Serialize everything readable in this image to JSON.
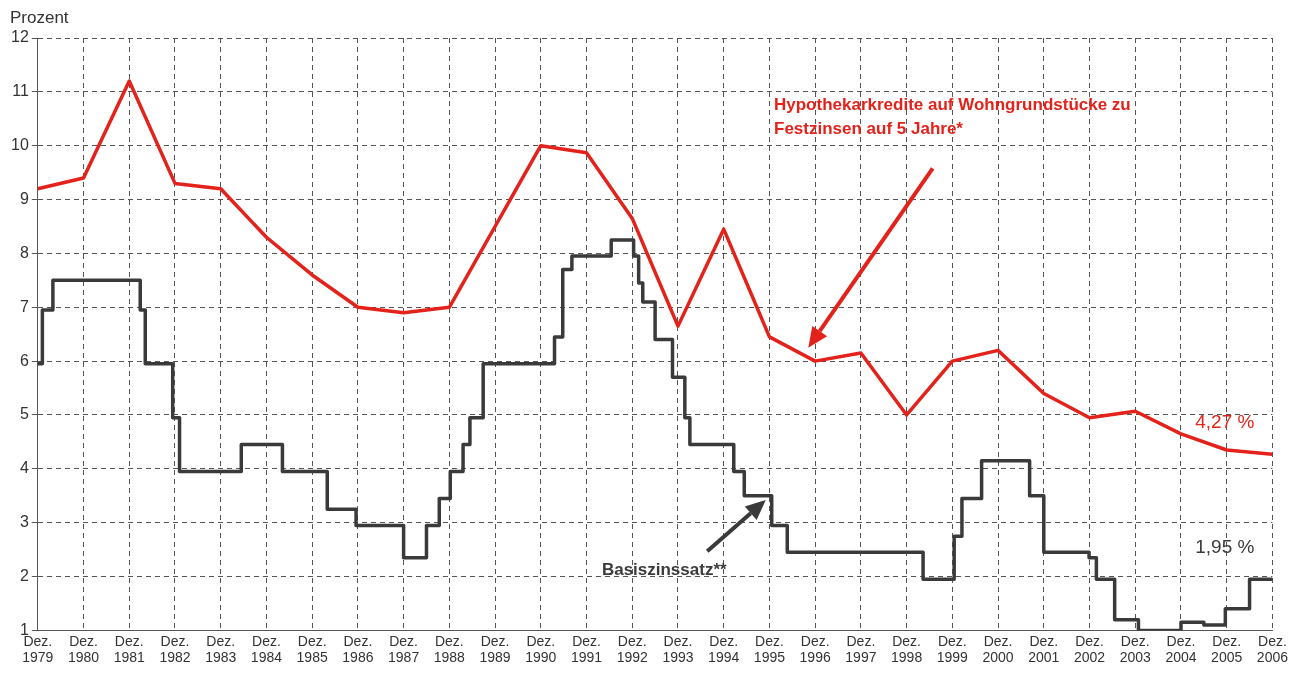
{
  "chart_data": {
    "type": "line",
    "ylabel": "Prozent",
    "x": [
      1979,
      1980,
      1981,
      1982,
      1983,
      1984,
      1985,
      1986,
      1987,
      1988,
      1989,
      1990,
      1991,
      1992,
      1993,
      1994,
      1995,
      1996,
      1997,
      1998,
      1999,
      2000,
      2001,
      2002,
      2003,
      2004,
      2005,
      2006
    ],
    "series": [
      {
        "name": "Hypothekarkredite auf Wohngrundstücke zu Festzinsen auf 5 Jahre*",
        "color": "#e3231b",
        "values": [
          9.2,
          9.4,
          11.2,
          9.3,
          9.2,
          8.3,
          7.6,
          7.0,
          6.9,
          7.0,
          8.5,
          10.0,
          9.87,
          8.65,
          6.65,
          8.45,
          6.45,
          6.0,
          6.15,
          5.0,
          6.0,
          6.2,
          5.4,
          4.95,
          5.07,
          4.65,
          4.35,
          4.27
        ]
      },
      {
        "name": "Basiszinssatz**",
        "color": "#3a3a3a",
        "type": "step",
        "x": [
          1979,
          1979.1,
          1979.33,
          1981.24,
          1981.35,
          1981.95,
          1982.1,
          1983.45,
          1984.35,
          1985.33,
          1985.96,
          1987.0,
          1987.5,
          1987.78,
          1988.02,
          1988.3,
          1988.45,
          1988.74,
          1990.3,
          1990.48,
          1990.68,
          1991.54,
          1992.03,
          1992.14,
          1992.23,
          1992.5,
          1992.88,
          1993.15,
          1993.26,
          1994.22,
          1994.45,
          1995.05,
          1995.39,
          1998.36,
          1999.04,
          1999.21,
          1999.64,
          2000.69,
          2001.0,
          2001.99,
          2002.15,
          2002.55,
          2003.07,
          2004.0,
          2004.5,
          2004.97,
          2005.5,
          2006
        ],
        "values": [
          5.95,
          6.95,
          7.5,
          6.95,
          5.95,
          4.95,
          3.95,
          4.45,
          3.95,
          3.25,
          2.95,
          2.35,
          2.95,
          3.45,
          3.95,
          4.45,
          4.95,
          5.95,
          6.45,
          7.7,
          7.95,
          8.25,
          7.95,
          7.45,
          7.1,
          6.4,
          5.7,
          4.95,
          4.45,
          3.95,
          3.5,
          2.95,
          2.45,
          1.95,
          2.75,
          3.45,
          4.15,
          3.5,
          2.45,
          2.35,
          1.95,
          1.2,
          1.0,
          1.15,
          1.1,
          1.4,
          1.95,
          1.95
        ]
      }
    ],
    "annotations": [
      {
        "text": "4,27 %",
        "x": 2006,
        "y": 4.27
      },
      {
        "text": "1,95 %",
        "x": 2006,
        "y": 1.95
      }
    ],
    "xlim": [
      1979,
      2006
    ],
    "xticks": [
      {
        "value": 1979,
        "label": "Dez. 1979"
      },
      {
        "value": 1980,
        "label": "Dez. 1980"
      },
      {
        "value": 1981,
        "label": "Dez. 1981"
      },
      {
        "value": 1982,
        "label": "Dez. 1982"
      },
      {
        "value": 1983,
        "label": "Dez. 1983"
      },
      {
        "value": 1984,
        "label": "Dez. 1984"
      },
      {
        "value": 1985,
        "label": "Dez. 1985"
      },
      {
        "value": 1986,
        "label": "Dez. 1986"
      },
      {
        "value": 1987,
        "label": "Dez. 1987"
      },
      {
        "value": 1988,
        "label": "Dez. 1988"
      },
      {
        "value": 1989,
        "label": "Dez. 1989"
      },
      {
        "value": 1990,
        "label": "Dez. 1990"
      },
      {
        "value": 1991,
        "label": "Dez. 1991"
      },
      {
        "value": 1992,
        "label": "Dez. 1992"
      },
      {
        "value": 1993,
        "label": "Dez. 1993"
      },
      {
        "value": 1994,
        "label": "Dez. 1994"
      },
      {
        "value": 1995,
        "label": "Dez. 1995"
      },
      {
        "value": 1996,
        "label": "Dez. 1996"
      },
      {
        "value": 1997,
        "label": "Dez. 1997"
      },
      {
        "value": 1998,
        "label": "Dez. 1998"
      },
      {
        "value": 1999,
        "label": "Dez. 1999"
      },
      {
        "value": 2000,
        "label": "Dez. 2000"
      },
      {
        "value": 2001,
        "label": "Dez. 2001"
      },
      {
        "value": 2002,
        "label": "Dez. 2002"
      },
      {
        "value": 2003,
        "label": "Dez. 2003"
      },
      {
        "value": 2004,
        "label": "Dez. 2004"
      },
      {
        "value": 2005,
        "label": "Dez. 2005"
      },
      {
        "value": 2006,
        "label": "Dez. 2006"
      }
    ],
    "ylim": [
      1,
      12
    ],
    "yticks": [
      1,
      2,
      3,
      4,
      5,
      6,
      7,
      8,
      9,
      10,
      11,
      12
    ],
    "grid": true,
    "marker": "none"
  }
}
